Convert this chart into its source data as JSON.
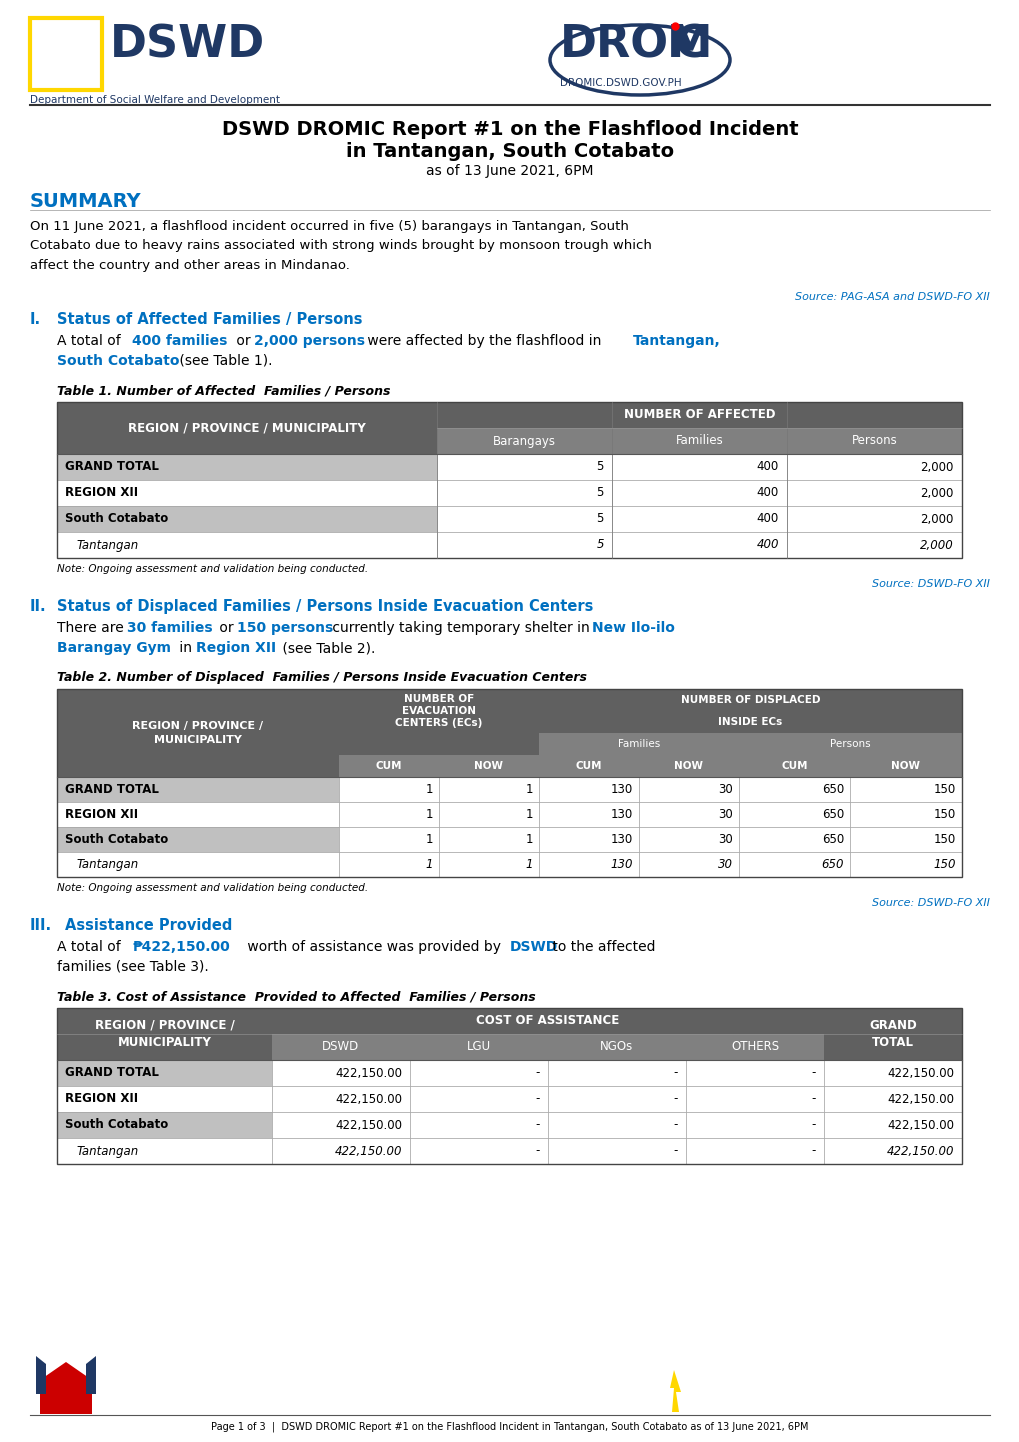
{
  "title_line1": "DSWD DROMIC Report #1 on the Flashflood Incident",
  "title_line2": "in Tantangan, South Cotabato",
  "subtitle": "as of 13 June 2021, 6PM",
  "summary_header": "SUMMARY",
  "summary_text": "On 11 June 2021, a flashflood incident occurred in five (5) barangays in Tantangan, South\nCotabato due to heavy rains associated with strong winds brought by monsoon trough which\naffect the country and other areas in Mindanao.",
  "source1": "Source: PAG-ASA and DSWD-FO XII",
  "source2": "Source: DSWD-FO XII",
  "source3": "Source: DSWD-FO XII",
  "table1_title": "Table 1. Number of Affected  Families / Persons",
  "table1_rows": [
    [
      "GRAND TOTAL",
      "5",
      "400",
      "2,000"
    ],
    [
      "REGION XII",
      "5",
      "400",
      "2,000"
    ],
    [
      "South Cotabato",
      "5",
      "400",
      "2,000"
    ],
    [
      "Tantangan",
      "5",
      "400",
      "2,000"
    ]
  ],
  "table1_note": "Note: Ongoing assessment and validation being conducted.",
  "table2_title": "Table 2. Number of Displaced  Families / Persons Inside Evacuation Centers",
  "table2_rows": [
    [
      "GRAND TOTAL",
      "1",
      "1",
      "130",
      "30",
      "650",
      "150"
    ],
    [
      "REGION XII",
      "1",
      "1",
      "130",
      "30",
      "650",
      "150"
    ],
    [
      "South Cotabato",
      "1",
      "1",
      "130",
      "30",
      "650",
      "150"
    ],
    [
      "Tantangan",
      "1",
      "1",
      "130",
      "30",
      "650",
      "150"
    ]
  ],
  "table2_note": "Note: Ongoing assessment and validation being conducted.",
  "table3_title": "Table 3. Cost of Assistance  Provided to Affected  Families / Persons",
  "table3_rows": [
    [
      "GRAND TOTAL",
      "422,150.00",
      "-",
      "-",
      "-",
      "422,150.00"
    ],
    [
      "REGION XII",
      "422,150.00",
      "-",
      "-",
      "-",
      "422,150.00"
    ],
    [
      "South Cotabato",
      "422,150.00",
      "-",
      "-",
      "-",
      "422,150.00"
    ],
    [
      "Tantangan",
      "422,150.00",
      "-",
      "-",
      "-",
      "422,150.00"
    ]
  ],
  "footer": "Page 1 of 3  |  DSWD DROMIC Report #1 on the Flashflood Incident in Tantangan, South Cotabato as of 13 June 2021, 6PM",
  "color_blue": "#1F3864",
  "color_cyan": "#0070C0",
  "color_header_dark": "#606060",
  "color_header_medium": "#808080",
  "color_header_light": "#C0C0C0",
  "color_row_white": "#FFFFFF",
  "color_row_light": "#D9D9D9",
  "color_yellow": "#FFD700",
  "color_red": "#CC0000",
  "bg_color": "#FFFFFF"
}
